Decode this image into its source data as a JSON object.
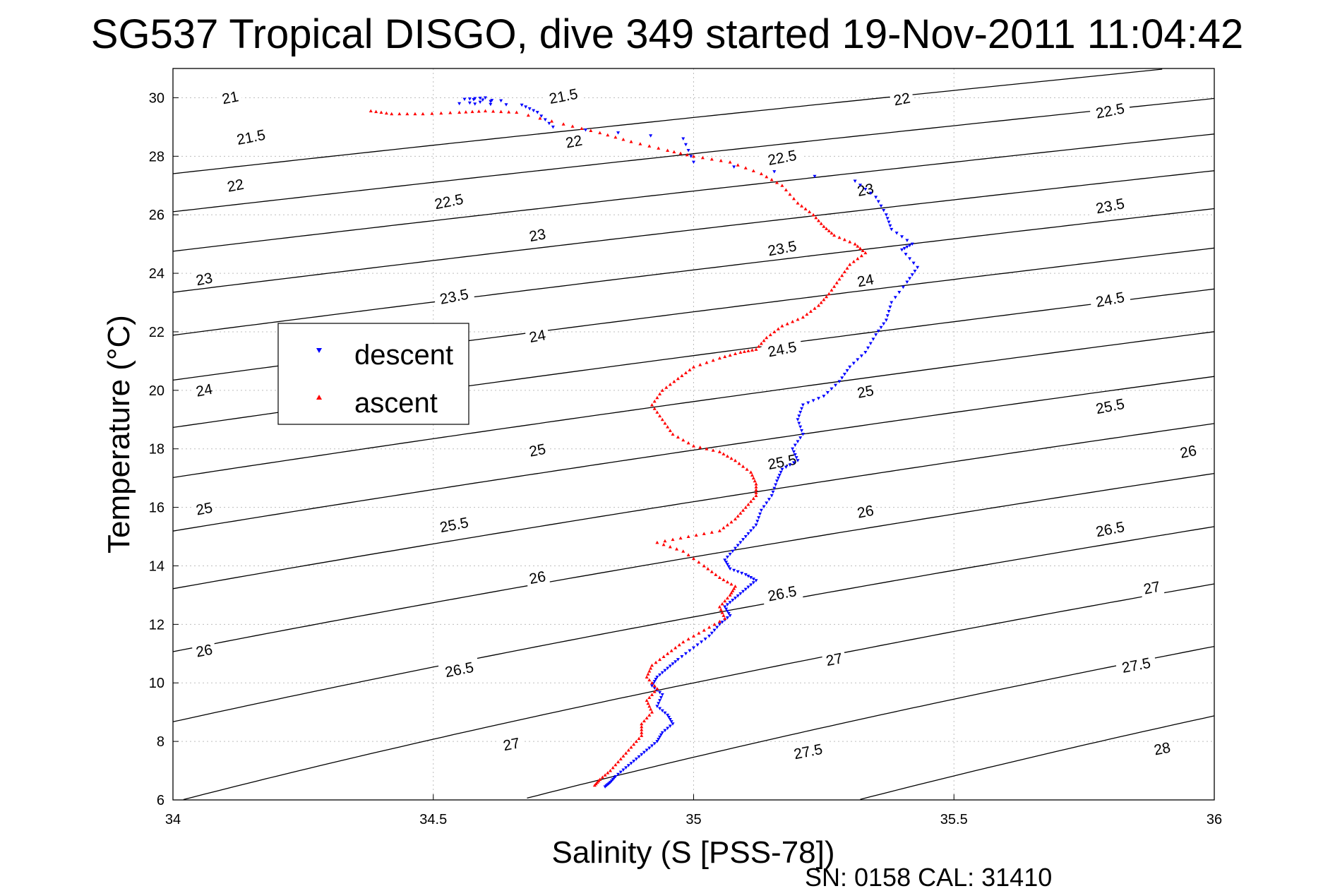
{
  "chart_data": {
    "type": "scatter",
    "title": "SG537 Tropical DISGO, dive 349 started 19-Nov-2011 11:04:42",
    "xlabel": "Salinity (S [PSS-78])",
    "ylabel": "Temperature (°C)",
    "xlim": [
      34,
      36
    ],
    "ylim": [
      6,
      31
    ],
    "xticks": [
      "34",
      "34.5",
      "35",
      "35.5",
      "36"
    ],
    "yticks": [
      "6",
      "8",
      "10",
      "12",
      "14",
      "16",
      "18",
      "20",
      "22",
      "24",
      "26",
      "28",
      "30"
    ],
    "grid": true,
    "legend_position": "left-center",
    "isopycnals": {
      "levels": [
        "21",
        "21.5",
        "22",
        "22.5",
        "23",
        "23.5",
        "24",
        "24.5",
        "25",
        "25.5",
        "26",
        "26.5",
        "27",
        "27.5",
        "28"
      ],
      "labels": [
        {
          "text": "21",
          "s": 34.11,
          "t": 30.0
        },
        {
          "text": "21.5",
          "s": 34.75,
          "t": 30.05
        },
        {
          "text": "22",
          "s": 35.4,
          "t": 29.95
        },
        {
          "text": "21.5",
          "s": 34.15,
          "t": 28.65
        },
        {
          "text": "22",
          "s": 34.77,
          "t": 28.5
        },
        {
          "text": "22.5",
          "s": 35.8,
          "t": 29.55
        },
        {
          "text": "22",
          "s": 34.12,
          "t": 27.0
        },
        {
          "text": "22.5",
          "s": 35.17,
          "t": 27.95
        },
        {
          "text": "22.5",
          "s": 34.53,
          "t": 26.45
        },
        {
          "text": "23",
          "s": 35.33,
          "t": 26.85
        },
        {
          "text": "23.5",
          "s": 35.8,
          "t": 26.3
        },
        {
          "text": "23",
          "s": 34.7,
          "t": 25.3
        },
        {
          "text": "23.5",
          "s": 35.17,
          "t": 24.85
        },
        {
          "text": "23",
          "s": 34.06,
          "t": 23.8
        },
        {
          "text": "24",
          "s": 35.33,
          "t": 23.75
        },
        {
          "text": "23.5",
          "s": 34.54,
          "t": 23.2
        },
        {
          "text": "24.5",
          "s": 35.8,
          "t": 23.1
        },
        {
          "text": "24",
          "s": 34.7,
          "t": 21.85
        },
        {
          "text": "24.5",
          "s": 35.17,
          "t": 21.4
        },
        {
          "text": "24",
          "s": 34.06,
          "t": 20.0
        },
        {
          "text": "25",
          "s": 35.33,
          "t": 19.95
        },
        {
          "text": "25.5",
          "s": 35.8,
          "t": 19.45
        },
        {
          "text": "25",
          "s": 34.7,
          "t": 17.95
        },
        {
          "text": "25.5",
          "s": 35.17,
          "t": 17.55
        },
        {
          "text": "26",
          "s": 35.95,
          "t": 17.9
        },
        {
          "text": "25",
          "s": 34.06,
          "t": 15.95
        },
        {
          "text": "26",
          "s": 35.33,
          "t": 15.85
        },
        {
          "text": "25.5",
          "s": 34.54,
          "t": 15.4
        },
        {
          "text": "26.5",
          "s": 35.8,
          "t": 15.25
        },
        {
          "text": "26",
          "s": 34.7,
          "t": 13.6
        },
        {
          "text": "26.5",
          "s": 35.17,
          "t": 13.05
        },
        {
          "text": "27",
          "s": 35.88,
          "t": 13.25
        },
        {
          "text": "26",
          "s": 34.06,
          "t": 11.1
        },
        {
          "text": "27",
          "s": 35.27,
          "t": 10.8
        },
        {
          "text": "26.5",
          "s": 34.55,
          "t": 10.45
        },
        {
          "text": "27.5",
          "s": 35.85,
          "t": 10.6
        },
        {
          "text": "27",
          "s": 34.65,
          "t": 7.9
        },
        {
          "text": "27.5",
          "s": 35.22,
          "t": 7.65
        },
        {
          "text": "28",
          "s": 35.9,
          "t": 7.75
        }
      ]
    },
    "series": [
      {
        "name": "descent",
        "color": "#0000ff",
        "marker": "triangle-down",
        "points": [
          [
            34.6,
            30.0
          ],
          [
            34.56,
            29.95
          ],
          [
            34.63,
            29.9
          ],
          [
            34.55,
            29.8
          ],
          [
            34.67,
            29.75
          ],
          [
            34.7,
            29.5
          ],
          [
            34.73,
            29.0
          ],
          [
            34.98,
            28.6
          ],
          [
            35.0,
            27.8
          ],
          [
            35.31,
            27.15
          ],
          [
            35.35,
            26.6
          ],
          [
            35.37,
            26.0
          ],
          [
            35.38,
            25.5
          ],
          [
            35.42,
            25.0
          ],
          [
            35.4,
            24.8
          ],
          [
            35.43,
            24.2
          ],
          [
            35.41,
            23.7
          ],
          [
            35.38,
            23.0
          ],
          [
            35.37,
            22.4
          ],
          [
            35.35,
            21.9
          ],
          [
            35.33,
            21.3
          ],
          [
            35.3,
            20.8
          ],
          [
            35.28,
            20.3
          ],
          [
            35.25,
            19.8
          ],
          [
            35.21,
            19.5
          ],
          [
            35.2,
            19.0
          ],
          [
            35.21,
            18.5
          ],
          [
            35.19,
            18.0
          ],
          [
            35.2,
            17.6
          ],
          [
            35.17,
            17.3
          ],
          [
            35.16,
            16.9
          ],
          [
            35.15,
            16.4
          ],
          [
            35.13,
            15.9
          ],
          [
            35.12,
            15.4
          ],
          [
            35.1,
            15.0
          ],
          [
            35.08,
            14.6
          ],
          [
            35.06,
            14.2
          ],
          [
            35.07,
            13.9
          ],
          [
            35.1,
            13.7
          ],
          [
            35.12,
            13.5
          ],
          [
            35.1,
            13.2
          ],
          [
            35.08,
            12.9
          ],
          [
            35.06,
            12.6
          ],
          [
            35.07,
            12.3
          ],
          [
            35.05,
            12.0
          ],
          [
            35.03,
            11.6
          ],
          [
            35.0,
            11.2
          ],
          [
            34.97,
            10.8
          ],
          [
            34.95,
            10.5
          ],
          [
            34.93,
            10.2
          ],
          [
            34.92,
            9.9
          ],
          [
            34.94,
            9.6
          ],
          [
            34.93,
            9.2
          ],
          [
            34.95,
            8.9
          ],
          [
            34.96,
            8.6
          ],
          [
            34.94,
            8.3
          ],
          [
            34.93,
            8.0
          ],
          [
            34.91,
            7.7
          ],
          [
            34.89,
            7.4
          ],
          [
            34.87,
            7.1
          ],
          [
            34.85,
            6.8
          ],
          [
            34.84,
            6.6
          ],
          [
            34.83,
            6.45
          ]
        ]
      },
      {
        "name": "ascent",
        "color": "#ff0000",
        "marker": "triangle-up",
        "points": [
          [
            34.38,
            29.55
          ],
          [
            34.42,
            29.45
          ],
          [
            34.48,
            29.45
          ],
          [
            34.55,
            29.5
          ],
          [
            34.6,
            29.55
          ],
          [
            34.66,
            29.5
          ],
          [
            34.75,
            29.1
          ],
          [
            34.82,
            28.8
          ],
          [
            34.88,
            28.5
          ],
          [
            34.95,
            28.2
          ],
          [
            35.0,
            28.0
          ],
          [
            35.07,
            27.8
          ],
          [
            35.13,
            27.4
          ],
          [
            35.17,
            27.0
          ],
          [
            35.2,
            26.4
          ],
          [
            35.23,
            26.0
          ],
          [
            35.25,
            25.6
          ],
          [
            35.27,
            25.3
          ],
          [
            35.31,
            25.0
          ],
          [
            35.33,
            24.7
          ],
          [
            35.3,
            24.3
          ],
          [
            35.28,
            23.8
          ],
          [
            35.26,
            23.3
          ],
          [
            35.24,
            22.9
          ],
          [
            35.21,
            22.5
          ],
          [
            35.17,
            22.2
          ],
          [
            35.14,
            21.8
          ],
          [
            35.12,
            21.4
          ],
          [
            35.09,
            21.3
          ],
          [
            35.05,
            21.1
          ],
          [
            35.0,
            20.8
          ],
          [
            34.97,
            20.4
          ],
          [
            34.94,
            20.0
          ],
          [
            34.92,
            19.5
          ],
          [
            34.94,
            19.0
          ],
          [
            34.96,
            18.5
          ],
          [
            35.0,
            18.1
          ],
          [
            35.05,
            17.9
          ],
          [
            35.08,
            17.6
          ],
          [
            35.11,
            17.2
          ],
          [
            35.12,
            16.8
          ],
          [
            35.12,
            16.4
          ],
          [
            35.1,
            16.0
          ],
          [
            35.08,
            15.6
          ],
          [
            35.05,
            15.2
          ],
          [
            34.99,
            15.0
          ],
          [
            34.93,
            14.8
          ],
          [
            34.98,
            14.5
          ],
          [
            35.02,
            14.0
          ],
          [
            35.05,
            13.6
          ],
          [
            35.08,
            13.3
          ],
          [
            35.07,
            13.0
          ],
          [
            35.05,
            12.6
          ],
          [
            35.06,
            12.2
          ],
          [
            35.02,
            11.8
          ],
          [
            34.98,
            11.4
          ],
          [
            34.95,
            11.0
          ],
          [
            34.92,
            10.6
          ],
          [
            34.91,
            10.2
          ],
          [
            34.93,
            9.8
          ],
          [
            34.91,
            9.4
          ],
          [
            34.92,
            9.0
          ],
          [
            34.9,
            8.6
          ],
          [
            34.9,
            8.2
          ],
          [
            34.88,
            7.8
          ],
          [
            34.86,
            7.4
          ],
          [
            34.84,
            7.0
          ],
          [
            34.82,
            6.7
          ],
          [
            34.81,
            6.5
          ]
        ]
      }
    ]
  },
  "footer": {
    "serial": "SN: 0158  CAL: 31410"
  }
}
